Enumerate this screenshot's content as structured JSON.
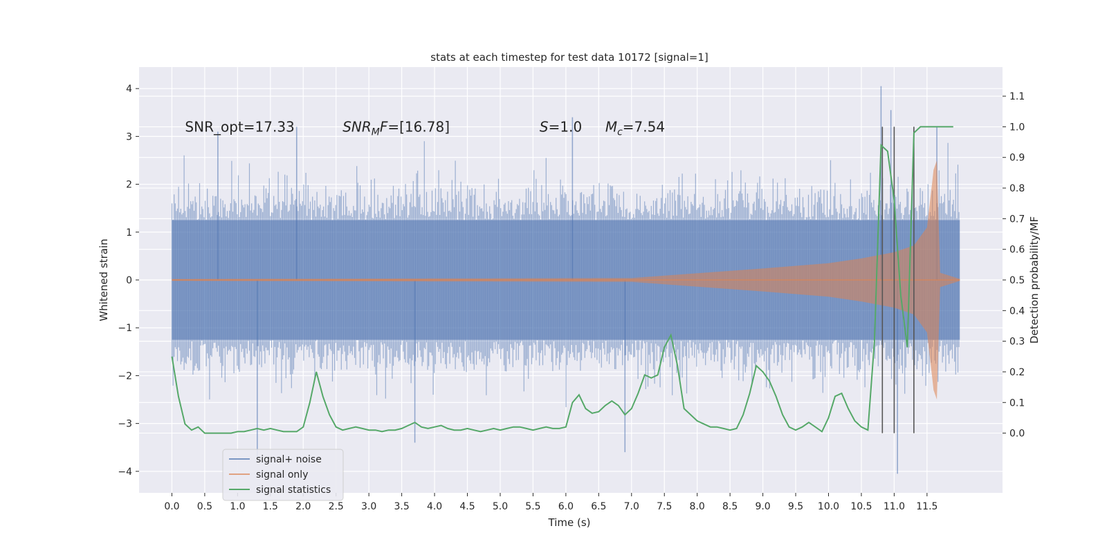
{
  "chart_data": {
    "type": "line",
    "title": "stats at each timestep for test data 10172 [signal=1]",
    "xlabel": "Time (s)",
    "ylabel": "Whitened strain",
    "ylabel_right": "Detection probability/MF",
    "xlim": [
      -0.5,
      12.65
    ],
    "ylim": [
      -4.45,
      4.45
    ],
    "ylim_right": [
      -0.195,
      1.195
    ],
    "x_ticks": [
      0.0,
      0.5,
      1.0,
      1.5,
      2.0,
      2.5,
      3.0,
      3.5,
      4.0,
      4.5,
      5.0,
      5.5,
      6.0,
      6.5,
      7.0,
      7.5,
      8.0,
      8.5,
      9.0,
      9.5,
      10.0,
      10.5,
      11.0,
      11.5
    ],
    "x_tick_labels": [
      "0.0",
      "0.5",
      "1.0",
      "1.5",
      "2.0",
      "2.5",
      "3.0",
      "3.5",
      "4.0",
      "4.5",
      "5.0",
      "5.5",
      "6.0",
      "6.5",
      "7.0",
      "7.5",
      "8.0",
      "8.5",
      "9.0",
      "9.5",
      "10.0",
      "10.5",
      "11.0",
      "11.5"
    ],
    "y_ticks": [
      -4,
      -3,
      -2,
      -1,
      0,
      1,
      2,
      3,
      4
    ],
    "y_tick_labels": [
      "−4",
      "−3",
      "−2",
      "−1",
      "0",
      "1",
      "2",
      "3",
      "4"
    ],
    "y_right_ticks": [
      0.0,
      0.1,
      0.2,
      0.3,
      0.4,
      0.5,
      0.6,
      0.7,
      0.8,
      0.9,
      1.0,
      1.1
    ],
    "y_right_tick_labels": [
      "0.0",
      "0.1",
      "0.2",
      "0.3",
      "0.4",
      "0.5",
      "0.6",
      "0.7",
      "0.8",
      "0.9",
      "1.0",
      "1.1"
    ],
    "grid": true,
    "legend_position": "lower-left",
    "annotations": [
      {
        "label": "SNR_opt",
        "value": "17.33",
        "x": 0.2,
        "y": 3.1
      },
      {
        "label": "SNR",
        "sub": "M",
        "suffix": "F=",
        "value": "[16.78]",
        "x": 2.6,
        "y": 3.1
      },
      {
        "label": "S",
        "value": "1.0",
        "x": 5.6,
        "y": 3.1
      },
      {
        "label": "M",
        "sub": "c",
        "value": "7.54",
        "x": 6.6,
        "y": 3.1
      }
    ],
    "series": [
      {
        "name": "signal+ noise",
        "color": "#4c72b0",
        "style": "noise-band",
        "x_range": [
          0.0,
          12.0
        ],
        "core_amplitude": 1.25,
        "typical_peak": 2.0,
        "extreme_spikes": [
          {
            "x": 0.7,
            "y": 3.1
          },
          {
            "x": 1.3,
            "y": -3.7
          },
          {
            "x": 1.9,
            "y": 3.2
          },
          {
            "x": 3.7,
            "y": -3.4
          },
          {
            "x": 6.1,
            "y": 3.4
          },
          {
            "x": 6.9,
            "y": -3.6
          },
          {
            "x": 10.95,
            "y": 3.55
          },
          {
            "x": 10.8,
            "y": 4.05
          },
          {
            "x": 11.05,
            "y": -4.05
          },
          {
            "x": 11.65,
            "y": 3.2
          }
        ]
      },
      {
        "name": "signal only",
        "color": "#dd8452",
        "style": "chirp-envelope",
        "envelope": [
          {
            "x": 0.0,
            "y": 0.02
          },
          {
            "x": 7.0,
            "y": 0.04
          },
          {
            "x": 8.0,
            "y": 0.14
          },
          {
            "x": 9.0,
            "y": 0.24
          },
          {
            "x": 10.0,
            "y": 0.35
          },
          {
            "x": 10.5,
            "y": 0.45
          },
          {
            "x": 11.0,
            "y": 0.58
          },
          {
            "x": 11.3,
            "y": 0.72
          },
          {
            "x": 11.5,
            "y": 1.1
          },
          {
            "x": 11.6,
            "y": 2.3
          },
          {
            "x": 11.65,
            "y": 2.5
          },
          {
            "x": 11.7,
            "y": 0.15
          },
          {
            "x": 12.0,
            "y": 0.02
          }
        ]
      },
      {
        "name": "signal statistics",
        "color": "#55a868",
        "style": "line",
        "x": [
          0.0,
          0.1,
          0.2,
          0.3,
          0.4,
          0.5,
          0.6,
          0.7,
          0.8,
          0.9,
          1.0,
          1.1,
          1.2,
          1.3,
          1.4,
          1.5,
          1.6,
          1.7,
          1.8,
          1.9,
          2.0,
          2.1,
          2.2,
          2.3,
          2.4,
          2.5,
          2.6,
          2.7,
          2.8,
          2.9,
          3.0,
          3.1,
          3.2,
          3.3,
          3.4,
          3.5,
          3.6,
          3.7,
          3.8,
          3.9,
          4.0,
          4.1,
          4.2,
          4.3,
          4.4,
          4.5,
          4.6,
          4.7,
          4.8,
          4.9,
          5.0,
          5.1,
          5.2,
          5.3,
          5.4,
          5.5,
          5.6,
          5.7,
          5.8,
          5.9,
          6.0,
          6.1,
          6.2,
          6.3,
          6.4,
          6.5,
          6.6,
          6.7,
          6.8,
          6.9,
          7.0,
          7.1,
          7.2,
          7.3,
          7.4,
          7.5,
          7.6,
          7.7,
          7.8,
          7.9,
          8.0,
          8.1,
          8.2,
          8.3,
          8.4,
          8.5,
          8.6,
          8.7,
          8.8,
          8.9,
          9.0,
          9.1,
          9.2,
          9.3,
          9.4,
          9.5,
          9.6,
          9.7,
          9.8,
          9.9,
          10.0,
          10.1,
          10.2,
          10.3,
          10.4,
          10.5,
          10.6,
          10.7,
          10.8,
          10.9,
          11.0,
          11.1,
          11.2,
          11.3,
          11.4,
          11.5,
          11.6,
          11.7,
          11.8,
          11.9
        ],
        "y": [
          0.25,
          0.12,
          0.03,
          0.01,
          0.02,
          0.0,
          0.0,
          0.0,
          0.0,
          0.0,
          0.005,
          0.005,
          0.01,
          0.015,
          0.01,
          0.015,
          0.01,
          0.005,
          0.005,
          0.005,
          0.02,
          0.1,
          0.2,
          0.12,
          0.06,
          0.02,
          0.01,
          0.015,
          0.02,
          0.015,
          0.01,
          0.01,
          0.005,
          0.01,
          0.01,
          0.015,
          0.025,
          0.035,
          0.02,
          0.015,
          0.02,
          0.025,
          0.015,
          0.01,
          0.01,
          0.015,
          0.01,
          0.005,
          0.01,
          0.015,
          0.01,
          0.015,
          0.02,
          0.02,
          0.015,
          0.01,
          0.015,
          0.02,
          0.015,
          0.015,
          0.02,
          0.1,
          0.125,
          0.08,
          0.065,
          0.07,
          0.09,
          0.105,
          0.09,
          0.06,
          0.08,
          0.13,
          0.19,
          0.18,
          0.19,
          0.28,
          0.32,
          0.22,
          0.08,
          0.06,
          0.04,
          0.03,
          0.02,
          0.02,
          0.015,
          0.01,
          0.015,
          0.06,
          0.13,
          0.22,
          0.2,
          0.17,
          0.12,
          0.06,
          0.02,
          0.01,
          0.02,
          0.035,
          0.02,
          0.005,
          0.05,
          0.12,
          0.13,
          0.08,
          0.04,
          0.02,
          0.01,
          0.3,
          0.94,
          0.92,
          0.76,
          0.45,
          0.28,
          0.98,
          1.0,
          1.0,
          1.0,
          1.0,
          1.0,
          1.0
        ]
      }
    ],
    "vertical_lines": [
      {
        "x": 10.82,
        "y0": 0.0,
        "y1": 1.0,
        "color": "#555555"
      },
      {
        "x": 11.0,
        "y0": 0.0,
        "y1": 1.0,
        "color": "#555555"
      },
      {
        "x": 11.3,
        "y0": 0.0,
        "y1": 1.0,
        "color": "#555555"
      }
    ]
  }
}
